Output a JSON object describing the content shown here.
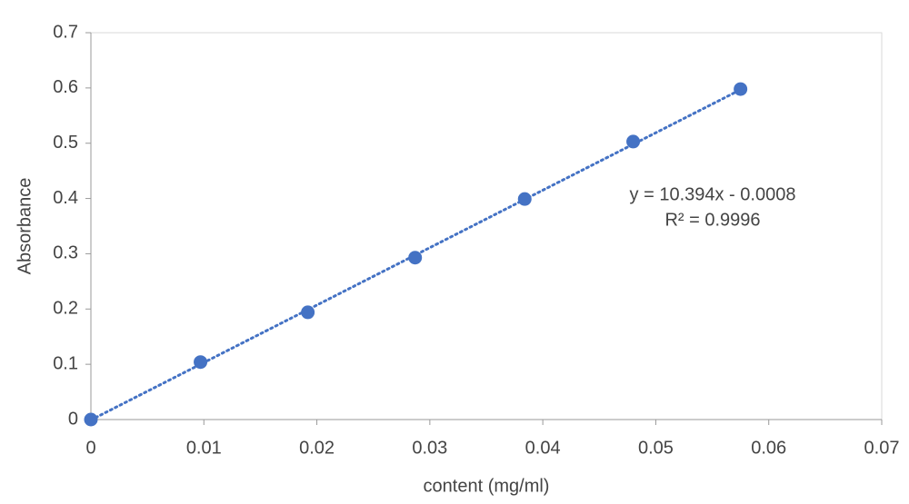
{
  "chart_data": {
    "type": "scatter",
    "x_label": "content (mg/ml)",
    "y_label": "Absorbance",
    "series": [
      {
        "name": "Absorbance",
        "color": "#4472c4",
        "x": [
          0,
          0.0097,
          0.0192,
          0.0287,
          0.0384,
          0.048,
          0.0575
        ],
        "values": [
          0,
          0.104,
          0.194,
          0.293,
          0.399,
          0.503,
          0.598
        ]
      }
    ],
    "trendline": {
      "slope": 10.394,
      "intercept": -0.0008,
      "style": "dotted",
      "equation": "y = 10.394x - 0.0008",
      "r_squared": "R² = 0.9996"
    },
    "xlim": [
      0,
      0.07
    ],
    "xticks": [
      0,
      0.01,
      0.02,
      0.03,
      0.04,
      0.05,
      0.06,
      0.07
    ],
    "ylim": [
      0,
      0.7
    ],
    "yticks": [
      0,
      0.1,
      0.2,
      0.3,
      0.4,
      0.5,
      0.6,
      0.7
    ],
    "grid": false
  }
}
